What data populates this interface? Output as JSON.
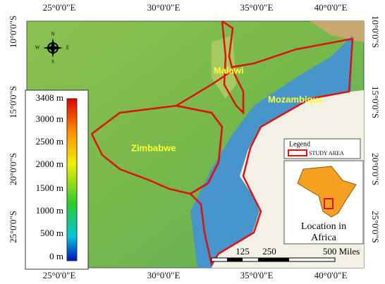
{
  "coordinate_labels": {
    "top": [
      "25°0'0\"E",
      "30°0'0\"E",
      "35°0'0\"E",
      "40°0'0\"E"
    ],
    "bottom": [
      "25°0'0\"E",
      "30°0'0\"E",
      "35°0'0\"E",
      "40°0'0\"E"
    ],
    "left": [
      "10°0'0\"S",
      "15°0'0\"S",
      "20°0'0\"S",
      "25°0'0\"S"
    ],
    "right": [
      "10°0'0\"S",
      "15°0'0\"S",
      "20°0'0\"S",
      "25°0'0\"S"
    ]
  },
  "countries": [
    "Malawi",
    "Mozambique",
    "Zimbabwe"
  ],
  "elevation_legend": {
    "labels": [
      "3408 m",
      "3000 m",
      "2500 m",
      "2000 m",
      "1500 m",
      "1000 m",
      "500 m",
      "0 m"
    ]
  },
  "legend": {
    "title": "Legend",
    "items": [
      "STUDY AREA"
    ]
  },
  "inset": {
    "caption": [
      "Location in",
      "Africa"
    ]
  },
  "scale_bar": {
    "labels": [
      "125",
      "250",
      "500 Miles"
    ]
  },
  "compass": [
    "N",
    "E",
    "S",
    "W"
  ]
}
